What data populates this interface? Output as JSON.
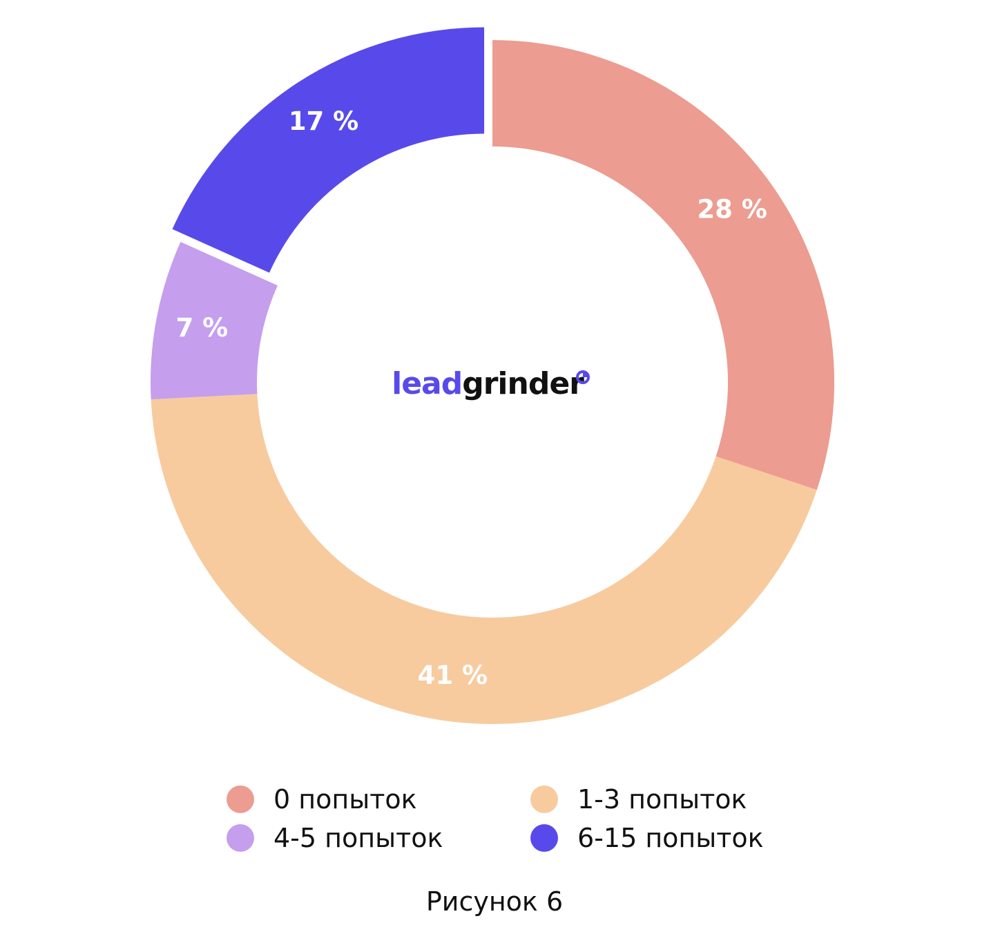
{
  "chart_data": {
    "type": "pie",
    "subtype": "donut",
    "categories": [
      "0 попыток",
      "1-3 попыток",
      "4-5 попыток",
      "6-15 попыток"
    ],
    "values": [
      28,
      41,
      7,
      17
    ],
    "value_labels": [
      "28 %",
      "41 %",
      "7 %",
      "17 %"
    ],
    "colors": [
      "#EC9C90",
      "#F7CB9E",
      "#C59EEE",
      "#584AEA"
    ],
    "exploded": [
      false,
      false,
      false,
      true
    ],
    "center_logo": {
      "part1": "lead",
      "part2": "grinder",
      "part1_color": "#584AEA",
      "part2_color": "#111111"
    },
    "legend_position": "bottom",
    "caption": "Рисунок 6"
  }
}
